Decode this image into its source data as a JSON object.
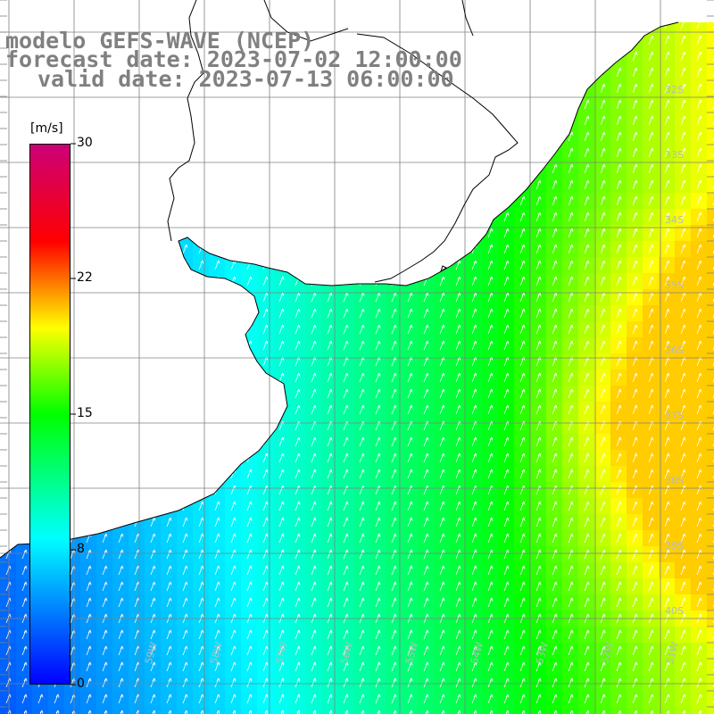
{
  "title": {
    "line1": "modelo GEFS-WAVE (NCEP)",
    "line2": "forecast date: 2023-07-02 12:00:00",
    "line3": "valid date: 2023-07-13 06:00:00"
  },
  "colorbar": {
    "unit": "[m/s]",
    "range": [
      0,
      30
    ],
    "labels": [
      "30",
      "22",
      "15",
      "8",
      "0"
    ],
    "label_values": [
      30,
      22,
      15,
      8,
      0
    ],
    "colors": [
      "#0000ff",
      "#00ffff",
      "#00ff00",
      "#ffff00",
      "#ff0000",
      "#cc0077"
    ]
  },
  "map": {
    "lat_labels": [
      "32S",
      "33S",
      "34S",
      "35S",
      "36S",
      "37S",
      "38S",
      "39S",
      "40S"
    ],
    "lon_labels": [
      "59W",
      "58W",
      "57W",
      "56W",
      "55W",
      "54W",
      "53W",
      "52W",
      "51W"
    ],
    "arrow_direction": "north-northeast",
    "land_color": "#ffffff",
    "grid_color": "#808080"
  }
}
